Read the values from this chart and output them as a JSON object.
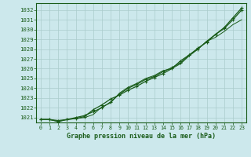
{
  "title": "Graphe pression niveau de la mer (hPa)",
  "background_color": "#cce8ec",
  "grid_color": "#aacccc",
  "line_color": "#1a5c1a",
  "xlim": [
    -0.5,
    23.5
  ],
  "ylim": [
    1020.5,
    1032.7
  ],
  "yticks": [
    1021,
    1022,
    1023,
    1024,
    1025,
    1026,
    1027,
    1028,
    1029,
    1030,
    1031,
    1032
  ],
  "xticks": [
    0,
    1,
    2,
    3,
    4,
    5,
    6,
    7,
    8,
    9,
    10,
    11,
    12,
    13,
    14,
    15,
    16,
    17,
    18,
    19,
    20,
    21,
    22,
    23
  ],
  "series1": [
    1020.8,
    1020.8,
    1020.6,
    1020.8,
    1020.9,
    1021.0,
    1021.3,
    1022.1,
    1022.5,
    1023.5,
    1024.1,
    1024.5,
    1025.0,
    1025.3,
    1025.8,
    1026.0,
    1026.5,
    1027.3,
    1028.0,
    1028.8,
    1029.2,
    1029.8,
    1030.5,
    1031.0
  ],
  "series2": [
    1020.8,
    1020.8,
    1020.7,
    1020.8,
    1020.9,
    1021.1,
    1021.8,
    1022.3,
    1022.9,
    1023.3,
    1023.8,
    1024.2,
    1024.7,
    1025.1,
    1025.5,
    1026.0,
    1026.8,
    1027.4,
    1028.0,
    1028.8,
    1029.5,
    1030.1,
    1031.0,
    1032.0
  ],
  "series3": [
    1020.8,
    1020.8,
    1020.6,
    1020.8,
    1021.0,
    1021.2,
    1021.6,
    1022.0,
    1022.6,
    1023.4,
    1024.0,
    1024.4,
    1024.9,
    1025.2,
    1025.7,
    1026.1,
    1026.6,
    1027.4,
    1028.1,
    1028.7,
    1029.5,
    1030.2,
    1031.2,
    1032.2
  ]
}
